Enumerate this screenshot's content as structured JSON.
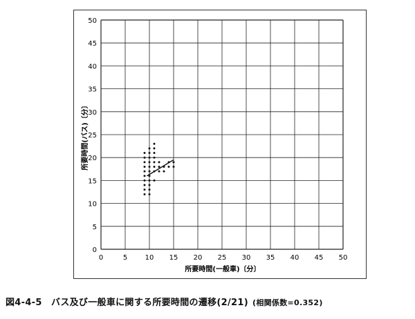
{
  "chart_data": {
    "type": "scatter",
    "xlabel": "所要時間(一般車)〔分〕",
    "ylabel": "所要時間(バス)〔分〕",
    "xlim": [
      0,
      50
    ],
    "ylim": [
      0,
      50
    ],
    "x_ticks": [
      0,
      5,
      10,
      15,
      20,
      25,
      30,
      35,
      40,
      45,
      50
    ],
    "y_ticks": [
      0,
      5,
      10,
      15,
      20,
      25,
      30,
      35,
      40,
      45,
      50
    ],
    "grid": true,
    "points": [
      [
        9,
        12
      ],
      [
        9,
        13
      ],
      [
        9,
        14
      ],
      [
        9,
        15
      ],
      [
        9,
        16
      ],
      [
        9,
        17
      ],
      [
        9,
        18
      ],
      [
        9,
        19
      ],
      [
        9,
        20
      ],
      [
        9,
        21
      ],
      [
        10,
        12
      ],
      [
        10,
        13
      ],
      [
        10,
        14
      ],
      [
        10,
        15
      ],
      [
        10,
        16
      ],
      [
        10,
        17
      ],
      [
        10,
        18
      ],
      [
        10,
        19
      ],
      [
        10,
        20
      ],
      [
        10,
        21
      ],
      [
        10,
        22
      ],
      [
        11,
        15
      ],
      [
        11,
        17
      ],
      [
        11,
        18
      ],
      [
        11,
        19
      ],
      [
        11,
        20
      ],
      [
        11,
        21
      ],
      [
        11,
        22
      ],
      [
        11,
        23
      ],
      [
        12,
        17
      ],
      [
        12,
        18
      ],
      [
        12,
        19
      ],
      [
        13,
        17
      ],
      [
        13,
        18
      ],
      [
        14,
        18
      ],
      [
        14,
        19
      ],
      [
        15,
        18
      ],
      [
        15,
        19
      ]
    ],
    "trendline": {
      "x": [
        9.5,
        15
      ],
      "y": [
        16,
        19.5
      ]
    },
    "marker_color": "#111111",
    "line_color": "#111111"
  },
  "caption": {
    "main": "図4-4-5　バス及び一般車に関する所要時間の遷移(2/21)",
    "sub": "(相関係数=0.352)"
  }
}
